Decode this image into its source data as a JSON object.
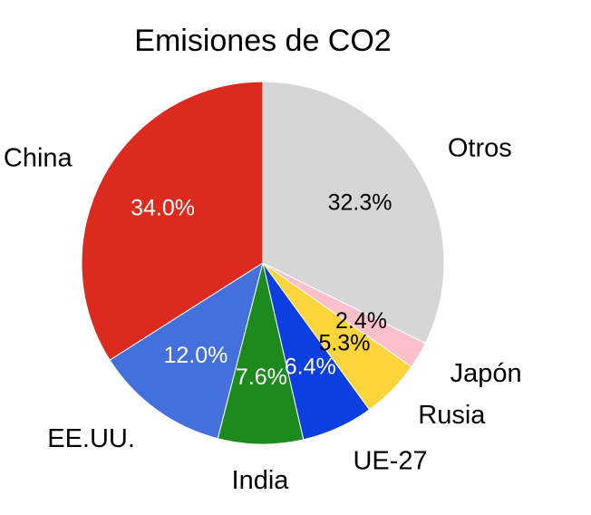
{
  "chart_data": {
    "type": "pie",
    "title": "Emisiones de CO2",
    "start_angle_deg": 90,
    "direction": "counterclockwise",
    "slices": [
      {
        "label": "China",
        "value": 34.0,
        "value_label": "34.0%",
        "color": "#dc2a1e",
        "value_color": "#ffffff"
      },
      {
        "label": "EE.UU.",
        "value": 12.0,
        "value_label": "12.0%",
        "color": "#4470dc",
        "value_color": "#ffffff"
      },
      {
        "label": "India",
        "value": 7.6,
        "value_label": "7.6%",
        "color": "#1c8a1c",
        "value_color": "#ffffff"
      },
      {
        "label": "UE-27",
        "value": 6.4,
        "value_label": "6.4%",
        "color": "#0b3fe0",
        "value_color": "#ffffff"
      },
      {
        "label": "Rusia",
        "value": 5.3,
        "value_label": "5.3%",
        "color": "#fdd43a",
        "value_color": "#000000"
      },
      {
        "label": "Japón",
        "value": 2.4,
        "value_label": "2.4%",
        "color": "#fdbfca",
        "value_color": "#000000"
      },
      {
        "label": "Otros",
        "value": 32.3,
        "value_label": "32.3%",
        "color": "#d6d6d6",
        "value_color": "#000000"
      }
    ]
  }
}
